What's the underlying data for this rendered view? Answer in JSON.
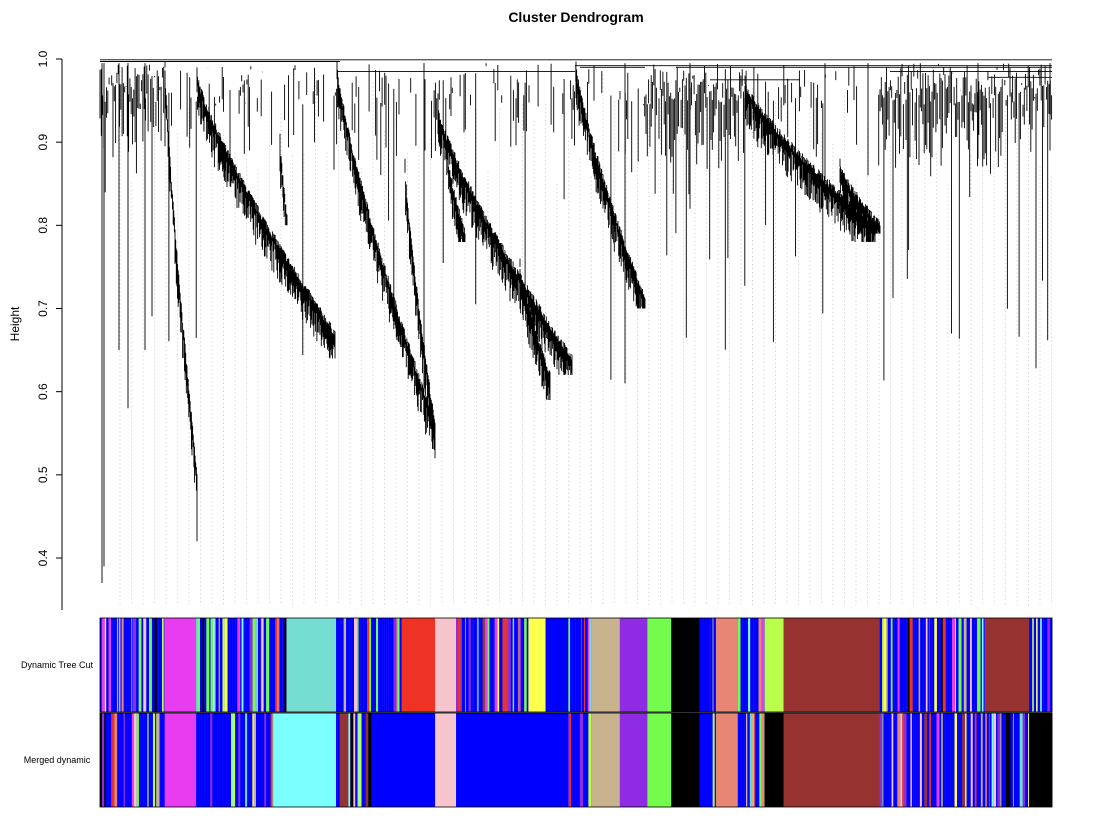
{
  "chart_data": {
    "type": "dendrogram",
    "title": "Cluster Dendrogram",
    "ylabel": "Height",
    "xlabel": "",
    "ylim": [
      0.33,
      1.0
    ],
    "y_ticks": [
      "0.4",
      "0.5",
      "0.6",
      "0.7",
      "0.8",
      "0.9",
      "1.0"
    ],
    "y_tick_values": [
      0.4,
      0.5,
      0.6,
      0.7,
      0.8,
      0.9,
      1.0
    ],
    "grid": false,
    "color_rows": [
      {
        "label": "Dynamic Tree Cut",
        "blocks": [
          {
            "from": 0.0,
            "to": 0.068,
            "color": "mixed"
          },
          {
            "from": 0.068,
            "to": 0.101,
            "color": "#e83cf0"
          },
          {
            "from": 0.101,
            "to": 0.196,
            "color": "mixed"
          },
          {
            "from": 0.196,
            "to": 0.248,
            "color": "#76ddd2"
          },
          {
            "from": 0.248,
            "to": 0.317,
            "color": "mixed"
          },
          {
            "from": 0.317,
            "to": 0.352,
            "color": "#ee3324"
          },
          {
            "from": 0.352,
            "to": 0.374,
            "color": "#f6c4cc"
          },
          {
            "from": 0.374,
            "to": 0.45,
            "color": "mixed"
          },
          {
            "from": 0.45,
            "to": 0.468,
            "color": "#ffff4d"
          },
          {
            "from": 0.468,
            "to": 0.492,
            "color": "#0000ff"
          },
          {
            "from": 0.492,
            "to": 0.516,
            "color": "mixed"
          },
          {
            "from": 0.516,
            "to": 0.546,
            "color": "#c9b38f"
          },
          {
            "from": 0.546,
            "to": 0.575,
            "color": "#8e2be3"
          },
          {
            "from": 0.575,
            "to": 0.6,
            "color": "#73fb4d"
          },
          {
            "from": 0.6,
            "to": 0.63,
            "color": "#000000"
          },
          {
            "from": 0.63,
            "to": 0.647,
            "color": "mixed"
          },
          {
            "from": 0.647,
            "to": 0.67,
            "color": "#e88676"
          },
          {
            "from": 0.67,
            "to": 0.698,
            "color": "mixed"
          },
          {
            "from": 0.698,
            "to": 0.718,
            "color": "#bbff4d"
          },
          {
            "from": 0.718,
            "to": 0.819,
            "color": "#963330"
          },
          {
            "from": 0.819,
            "to": 0.93,
            "color": "mixed"
          },
          {
            "from": 0.93,
            "to": 0.976,
            "color": "#963330"
          },
          {
            "from": 0.976,
            "to": 1.0,
            "color": "mixed"
          }
        ]
      },
      {
        "label": "Merged dynamic",
        "blocks": [
          {
            "from": 0.0,
            "to": 0.068,
            "color": "mixed"
          },
          {
            "from": 0.068,
            "to": 0.101,
            "color": "#e83cf0"
          },
          {
            "from": 0.101,
            "to": 0.182,
            "color": "mixed"
          },
          {
            "from": 0.182,
            "to": 0.248,
            "color": "#7afefe"
          },
          {
            "from": 0.248,
            "to": 0.287,
            "color": "mixed"
          },
          {
            "from": 0.287,
            "to": 0.352,
            "color": "#0000ff"
          },
          {
            "from": 0.352,
            "to": 0.374,
            "color": "#f6c4cc"
          },
          {
            "from": 0.374,
            "to": 0.492,
            "color": "#0000ff"
          },
          {
            "from": 0.492,
            "to": 0.516,
            "color": "mixed"
          },
          {
            "from": 0.516,
            "to": 0.546,
            "color": "#c9b38f"
          },
          {
            "from": 0.546,
            "to": 0.575,
            "color": "#8e2be3"
          },
          {
            "from": 0.575,
            "to": 0.6,
            "color": "#73fb4d"
          },
          {
            "from": 0.6,
            "to": 0.63,
            "color": "#000000"
          },
          {
            "from": 0.63,
            "to": 0.647,
            "color": "mixed"
          },
          {
            "from": 0.647,
            "to": 0.67,
            "color": "#e88676"
          },
          {
            "from": 0.67,
            "to": 0.698,
            "color": "mixed"
          },
          {
            "from": 0.698,
            "to": 0.718,
            "color": "#000000"
          },
          {
            "from": 0.718,
            "to": 0.819,
            "color": "#963330"
          },
          {
            "from": 0.819,
            "to": 0.93,
            "color": "mixed"
          },
          {
            "from": 0.93,
            "to": 0.976,
            "color": "mixed"
          },
          {
            "from": 0.976,
            "to": 1.0,
            "color": "#000000"
          }
        ]
      }
    ],
    "palette": [
      "#0000ff",
      "#7afefe",
      "#76ddd2",
      "#ffff4d",
      "#e88676",
      "#963330",
      "#c9b38f",
      "#8e2be3",
      "#73fb4d",
      "#000000",
      "#f6c4cc",
      "#ee3324",
      "#bbff4d",
      "#e83cf0"
    ]
  }
}
